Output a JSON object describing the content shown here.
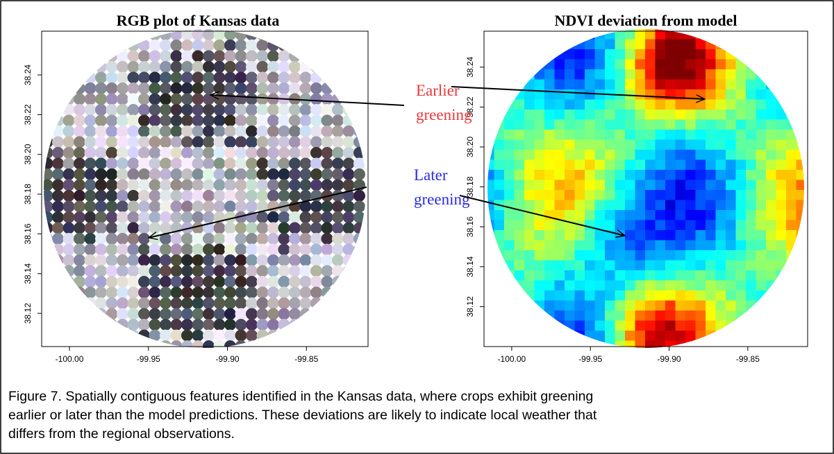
{
  "figure": {
    "panels": [
      {
        "title": "RGB plot of Kansas data",
        "xlim": [
          -100.0176,
          -99.811
        ],
        "ylim": [
          38.1033,
          38.262
        ],
        "xticks": [
          {
            "value": -100,
            "label": "-100.00"
          },
          {
            "value": -99.95,
            "label": "-99.95"
          },
          {
            "value": -99.9,
            "label": "-99.90"
          },
          {
            "value": -99.85,
            "label": "-99.85"
          }
        ],
        "yticks": [
          {
            "value": 38.12,
            "label": "38.12"
          },
          {
            "value": 38.14,
            "label": "38.14"
          },
          {
            "value": 38.16,
            "label": "38.16"
          },
          {
            "value": 38.18,
            "label": "38.18"
          },
          {
            "value": 38.2,
            "label": "38.20"
          },
          {
            "value": 38.22,
            "label": "38.22"
          },
          {
            "value": 38.24,
            "label": "38.24"
          }
        ]
      },
      {
        "title": "NDVI deviation from model",
        "xlim": [
          -100.0176,
          -99.812
        ],
        "ylim": [
          38.1,
          38.258
        ],
        "xticks": [
          {
            "value": -100,
            "label": "-100.00"
          },
          {
            "value": -99.95,
            "label": "-99.95"
          },
          {
            "value": -99.9,
            "label": "-99.90"
          },
          {
            "value": -99.85,
            "label": "-99.85"
          }
        ],
        "yticks": [
          {
            "value": 38.12,
            "label": "38.12"
          },
          {
            "value": 38.14,
            "label": "38.14"
          },
          {
            "value": 38.16,
            "label": "38.16"
          },
          {
            "value": 38.18,
            "label": "38.18"
          },
          {
            "value": 38.2,
            "label": "38.20"
          },
          {
            "value": 38.22,
            "label": "38.22"
          },
          {
            "value": 38.24,
            "label": "38.24"
          }
        ]
      }
    ],
    "annotations": [
      {
        "lines": [
          "Earlier",
          "greening"
        ],
        "color": "#e8383c"
      },
      {
        "lines": [
          "Later",
          "greening"
        ],
        "color": "#2a2ae6"
      }
    ],
    "caption": [
      "Figure 7.  Spatially contiguous features identified in the Kansas data, where crops exhibit greening",
      "earlier or later than the model predictions.  These deviations are likely to indicate local weather that",
      "differs from the regional observations."
    ]
  }
}
